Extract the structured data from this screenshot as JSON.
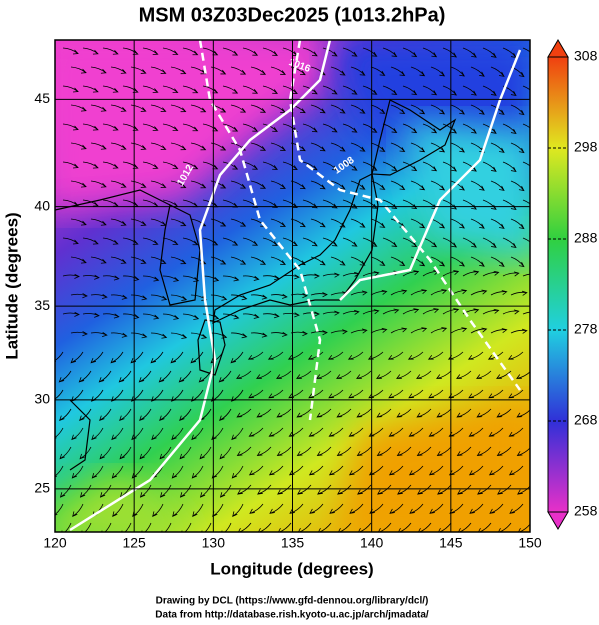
{
  "chart_data": {
    "type": "map",
    "title": "MSM 03Z03Dec2025 (1013.2hPa)",
    "x_label": "Longitude (degrees)",
    "y_label": "Latitude  (degrees)",
    "xlim": [
      120,
      150
    ],
    "ylim": [
      22.5,
      47.6
    ],
    "xticks": [
      120,
      125,
      130,
      135,
      140,
      145,
      150
    ],
    "yticks": [
      25,
      30,
      35,
      40,
      45
    ],
    "grid": true,
    "colorbar": {
      "range": [
        258,
        308
      ],
      "ticks": [
        258,
        268,
        278,
        288,
        298,
        308
      ]
    },
    "contour_labels": [
      "1016",
      "1008",
      "1012"
    ],
    "credits": [
      "Drawing by DCL (https://www.gfd-dennou.org/library/dcl/)",
      "Data from http://database.rish.kyoto-u.ac.jp/arch/jmadata/"
    ]
  }
}
